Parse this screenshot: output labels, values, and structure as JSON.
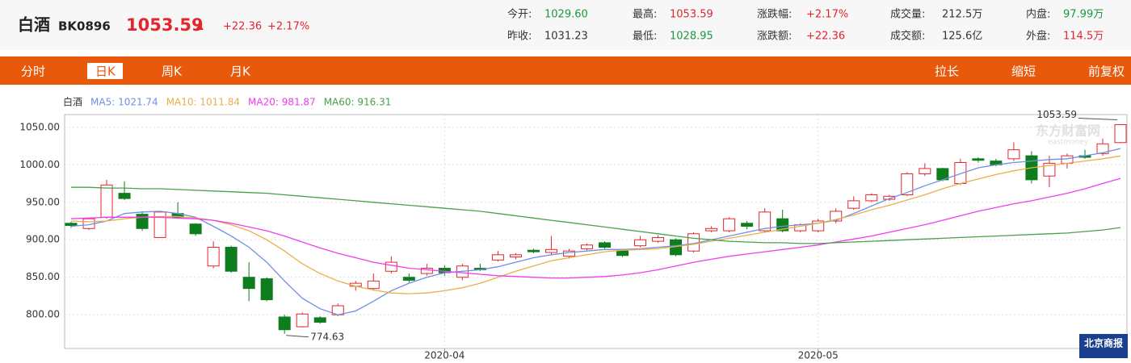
{
  "header": {
    "name": "白酒",
    "code": "BK0896",
    "price": "1053.59",
    "change": "+22.36",
    "change_pct": "+2.17%"
  },
  "quote": {
    "open": {
      "label": "今开:",
      "value": "1029.60"
    },
    "prev_close": {
      "label": "昨收:",
      "value": "1031.23"
    },
    "high": {
      "label": "最高:",
      "value": "1053.59"
    },
    "low": {
      "label": "最低:",
      "value": "1028.95"
    },
    "change_pct": {
      "label": "涨跌幅:",
      "value": "+2.17%"
    },
    "change": {
      "label": "涨跌额:",
      "value": "+22.36"
    },
    "volume": {
      "label": "成交量:",
      "value": "212.5万"
    },
    "amount": {
      "label": "成交额:",
      "value": "125.6亿"
    },
    "inner": {
      "label": "内盘:",
      "value": "97.99万"
    },
    "outer": {
      "label": "外盘:",
      "value": "114.5万"
    }
  },
  "tabs": [
    "分时",
    "日K",
    "周K",
    "月K"
  ],
  "tools": [
    "拉长",
    "缩短",
    "前复权"
  ],
  "watermark": {
    "cn": "东方财富网",
    "en": "eastmoney",
    "logo": "北京商报"
  },
  "chart_data": {
    "type": "candlestick",
    "legend_title": "白酒",
    "up_color": "#e4262c",
    "down_color": "#0e7d1e",
    "grid": true,
    "categories": [
      null,
      null,
      null,
      null,
      null,
      null,
      null,
      null,
      null,
      null,
      null,
      null,
      null,
      null,
      null,
      null,
      null,
      null,
      null,
      null,
      null,
      "2020-04",
      null,
      null,
      null,
      null,
      null,
      null,
      null,
      null,
      null,
      null,
      null,
      null,
      null,
      null,
      null,
      null,
      null,
      null,
      null,
      null,
      "2020-05",
      null,
      null,
      null,
      null,
      null,
      null,
      null,
      null,
      null,
      null,
      null,
      null,
      null,
      null,
      null,
      null,
      null
    ],
    "open": [
      922,
      915,
      930,
      962,
      934,
      903,
      935,
      921,
      865,
      890,
      850,
      848,
      797,
      784,
      796,
      800,
      838,
      835,
      858,
      850,
      855,
      862,
      850,
      862,
      873,
      877,
      886,
      883,
      878,
      888,
      896,
      885,
      892,
      898,
      900,
      885,
      912,
      912,
      922,
      912,
      928,
      912,
      912,
      925,
      942,
      952,
      954,
      960,
      988,
      995,
      975,
      1008,
      1005,
      1008,
      1012,
      985,
      1002,
      1012,
      1015,
      1029.6
    ],
    "high": [
      924,
      929,
      980,
      978,
      938,
      938,
      950,
      922,
      898,
      892,
      870,
      850,
      800,
      803,
      798,
      815,
      845,
      855,
      878,
      855,
      868,
      866,
      868,
      868,
      885,
      882,
      888,
      905,
      888,
      895,
      898,
      887,
      905,
      906,
      902,
      910,
      918,
      930,
      925,
      942,
      940,
      922,
      928,
      942,
      958,
      962,
      960,
      990,
      1002,
      996,
      1008,
      1010,
      1008,
      1030,
      1018,
      1012,
      1015,
      1020,
      1035,
      1053.59
    ],
    "low": [
      916,
      913,
      928,
      953,
      912,
      903,
      928,
      905,
      862,
      856,
      818,
      818,
      774.63,
      783,
      788,
      798,
      832,
      832,
      855,
      843,
      852,
      852,
      846,
      858,
      871,
      874,
      882,
      880,
      875,
      886,
      888,
      877,
      890,
      896,
      878,
      883,
      910,
      910,
      914,
      910,
      910,
      910,
      910,
      922,
      940,
      950,
      952,
      958,
      985,
      978,
      973,
      1003,
      998,
      1005,
      975,
      970,
      995,
      1008,
      1012,
      1028.95
    ],
    "close": [
      919,
      928,
      973,
      955,
      915,
      937,
      930,
      908,
      890,
      858,
      835,
      820,
      780,
      801,
      790,
      812,
      842,
      845,
      870,
      846,
      862,
      856,
      865,
      860,
      880,
      880,
      884,
      887,
      885,
      893,
      890,
      879,
      900,
      903,
      880,
      908,
      915,
      928,
      918,
      937,
      912,
      920,
      925,
      938,
      952,
      960,
      958,
      988,
      995,
      980,
      1003,
      1006,
      1000,
      1020,
      980,
      1002,
      1012,
      1010,
      1028,
      1053.59
    ],
    "series": [
      {
        "name": "MA5: 1021.74",
        "color": "#6f8fe6",
        "values": [
          918,
          920,
          925,
          935,
          937,
          938,
          935,
          930,
          918,
          905,
          890,
          870,
          845,
          822,
          808,
          800,
          805,
          818,
          832,
          842,
          850,
          856,
          858,
          860,
          864,
          870,
          876,
          880,
          883,
          885,
          887,
          887,
          888,
          890,
          892,
          895,
          900,
          905,
          910,
          915,
          918,
          920,
          922,
          926,
          935,
          945,
          955,
          963,
          972,
          980,
          988,
          996,
          1000,
          1003,
          1005,
          1007,
          1008,
          1012,
          1016,
          1021.74
        ]
      },
      {
        "name": "MA10: 1011.84",
        "color": "#e8b04a",
        "values": [
          925,
          924,
          925,
          928,
          930,
          931,
          931,
          929,
          926,
          920,
          912,
          900,
          885,
          868,
          855,
          845,
          838,
          833,
          829,
          828,
          829,
          832,
          836,
          842,
          850,
          858,
          865,
          872,
          876,
          880,
          884,
          886,
          887,
          888,
          891,
          894,
          898,
          902,
          906,
          910,
          914,
          918,
          922,
          927,
          933,
          940,
          946,
          953,
          960,
          968,
          975,
          981,
          987,
          992,
          996,
          999,
          1002,
          1005,
          1008,
          1011.84
        ]
      },
      {
        "name": "MA20: 981.87",
        "color": "#f03cf0",
        "values": [
          928,
          929,
          930,
          930,
          930,
          930,
          929,
          928,
          926,
          922,
          917,
          912,
          905,
          897,
          889,
          882,
          876,
          870,
          866,
          862,
          860,
          858,
          856,
          854,
          852,
          851,
          850,
          849,
          849,
          850,
          851,
          853,
          856,
          860,
          865,
          870,
          874,
          878,
          881,
          884,
          887,
          890,
          893,
          897,
          901,
          905,
          910,
          915,
          920,
          926,
          932,
          938,
          943,
          948,
          952,
          957,
          962,
          968,
          975,
          981.87
        ]
      },
      {
        "name": "MA60: 916.31",
        "color": "#4aa04a",
        "values": [
          970,
          970,
          969,
          969,
          968,
          968,
          967,
          966,
          965,
          964,
          963,
          962,
          960,
          958,
          956,
          954,
          952,
          950,
          948,
          946,
          944,
          942,
          940,
          938,
          935,
          932,
          929,
          926,
          923,
          920,
          917,
          914,
          911,
          908,
          905,
          902,
          900,
          898,
          897,
          896,
          896,
          895,
          895,
          896,
          897,
          898,
          899,
          900,
          901,
          902,
          903,
          904,
          905,
          906,
          907,
          908,
          909,
          911,
          913,
          916.31
        ]
      }
    ],
    "ylim": [
      755,
      1067
    ],
    "yticks": [
      {
        "value": 800,
        "label": "800.00"
      },
      {
        "value": 850,
        "label": "850.00"
      },
      {
        "value": 900,
        "label": "900.00"
      },
      {
        "value": 950,
        "label": "950.00"
      },
      {
        "value": 1000,
        "label": "1000.00"
      },
      {
        "value": 1050,
        "label": "1050.00"
      }
    ],
    "annotations": {
      "max_label": "1053.59",
      "min_label": "774.63"
    }
  }
}
